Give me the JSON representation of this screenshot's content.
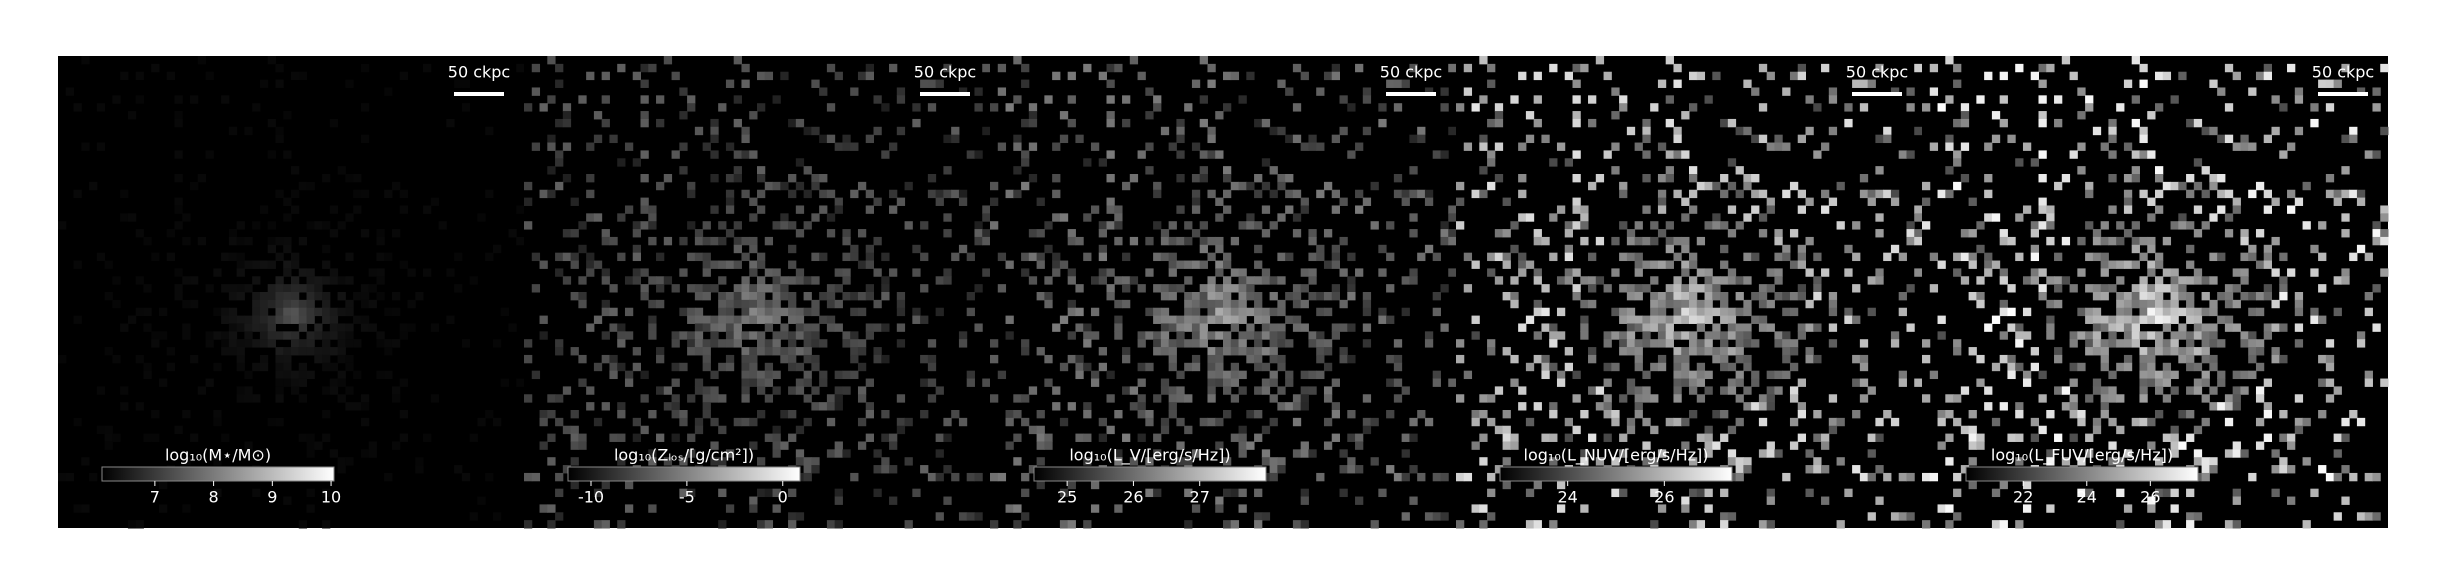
{
  "chart_data": [
    {
      "type": "image",
      "scalebar_label": "50 ckpc",
      "colorbar": {
        "label": "log₁₀(M⋆/M⊙)",
        "lim": [
          6.1,
          10.05
        ],
        "ticks": [
          7,
          8,
          9,
          10
        ]
      }
    },
    {
      "type": "image",
      "scalebar_label": "50 ckpc",
      "colorbar": {
        "label": "log₁₀(Zₗₒₛ/[g/cm²])",
        "lim": [
          -11.2,
          0.9
        ],
        "ticks": [
          -10,
          -5,
          0
        ]
      }
    },
    {
      "type": "image",
      "scalebar_label": "50 ckpc",
      "colorbar": {
        "label": "log₁₀(L_V/[erg/s/Hz])",
        "lim": [
          24.5,
          28.0
        ],
        "ticks": [
          25,
          26,
          27
        ]
      }
    },
    {
      "type": "image",
      "scalebar_label": "50 ckpc",
      "colorbar": {
        "label": "log₁₀(L_NUV/[erg/s/Hz])",
        "lim": [
          22.6,
          27.4
        ],
        "ticks": [
          24,
          26
        ]
      }
    },
    {
      "type": "image",
      "scalebar_label": "50 ckpc",
      "colorbar": {
        "label": "log₁₀(L_FUV/[erg/s/Hz])",
        "lim": [
          20.2,
          27.5
        ],
        "ticks": [
          22,
          24,
          26
        ]
      }
    }
  ]
}
